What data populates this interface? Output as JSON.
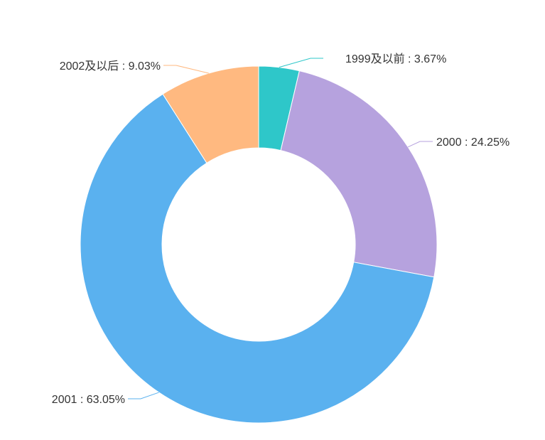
{
  "chart_data": {
    "type": "pie",
    "variant": "donut",
    "start_angle_deg": 90,
    "direction": "clockwise",
    "slices": [
      {
        "name": "1999及以前",
        "value": 3.67,
        "label": "1999及以前 : 3.67%",
        "color": "#2ec7c9"
      },
      {
        "name": "2000",
        "value": 24.25,
        "label": "2000 : 24.25%",
        "color": "#b6a2de"
      },
      {
        "name": "2001",
        "value": 63.05,
        "label": "2001 : 63.05%",
        "color": "#5ab1ef"
      },
      {
        "name": "2002及以后",
        "value": 9.03,
        "label": "2002及以后 : 9.03%",
        "color": "#ffb980"
      }
    ]
  }
}
